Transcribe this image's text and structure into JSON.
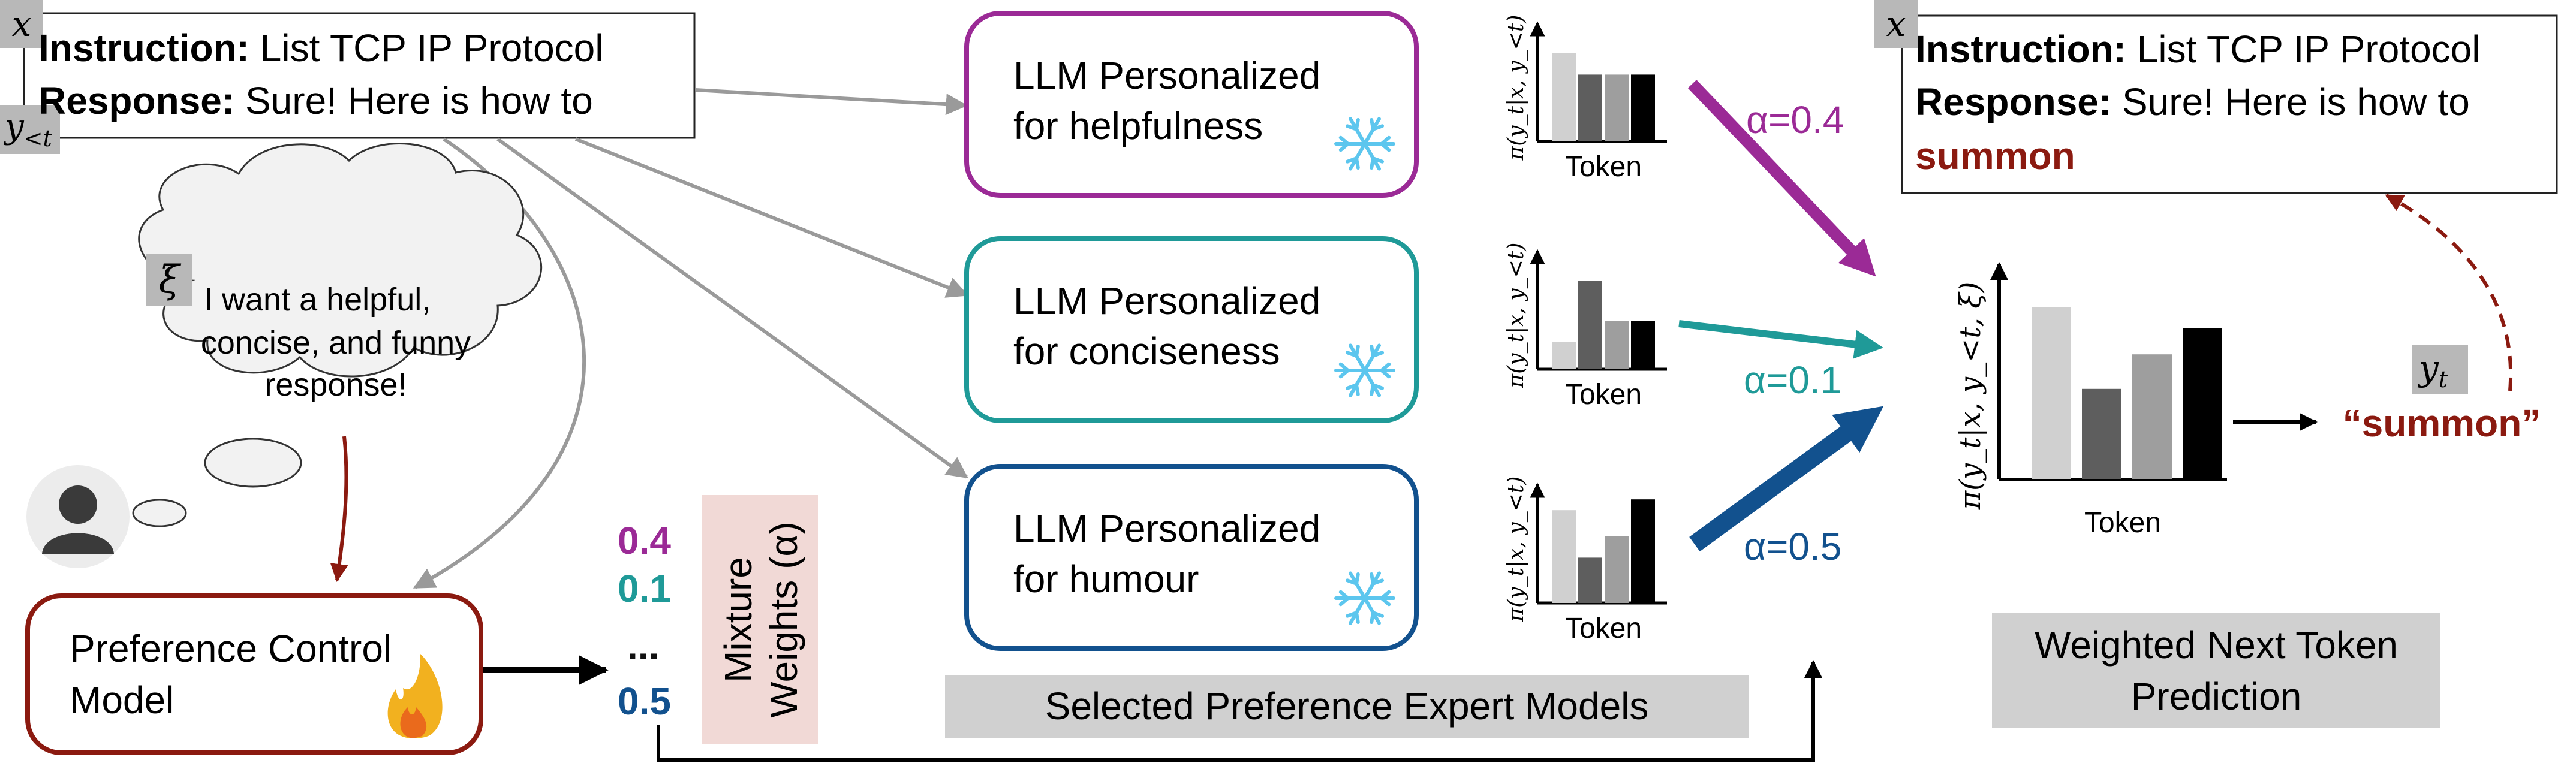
{
  "input_box": {
    "x_tag": "x",
    "y_tag": "y",
    "y_tag_sub": "<t",
    "instruction_label": "Instruction:",
    "instruction_text": "List TCP IP Protocol",
    "response_label": "Response:",
    "response_text": "Sure! Here is how to"
  },
  "thought": {
    "xi_tag": "ξ",
    "lines": [
      "I want a helpful,",
      "concise, and funny",
      "response!"
    ]
  },
  "control_model": {
    "lines": [
      "Preference Control",
      "Model"
    ],
    "fire_icon": "fire-icon"
  },
  "mixture": {
    "values": [
      "0.4",
      "0.1",
      "...",
      "0.5"
    ],
    "colors": [
      "#9b2a96",
      "#1f9a98",
      "#111111",
      "#12518e"
    ],
    "label_lines": [
      "Mixture",
      "Weights (α)"
    ]
  },
  "experts": [
    {
      "line1": "LLM Personalized",
      "line2": "for helpfulness",
      "color": "#9b2a96",
      "alpha": "α=0.4",
      "icon": "snowflake-icon"
    },
    {
      "line1": "LLM Personalized",
      "line2": "for conciseness",
      "color": "#1f9a98",
      "alpha": "α=0.1",
      "icon": "snowflake-icon"
    },
    {
      "line1": "LLM Personalized",
      "line2": "for humour",
      "color": "#12518e",
      "alpha": "α=0.5",
      "icon": "snowflake-icon"
    }
  ],
  "experts_caption": "Selected Preference Expert Models",
  "small_charts": {
    "ylabel": "π(y_t|x, y_<t)",
    "xlabel": "Token",
    "bar_colors": [
      "#d0d0d0",
      "#5e5e5e",
      "#9e9e9e",
      "#000000"
    ],
    "series": [
      [
        0.82,
        0.62,
        0.62,
        0.62
      ],
      [
        0.25,
        0.82,
        0.45,
        0.45
      ],
      [
        0.86,
        0.42,
        0.62,
        0.96
      ]
    ]
  },
  "output_box": {
    "x_tag": "x",
    "instruction_label": "Instruction:",
    "instruction_text": "List TCP IP Protocol",
    "response_label": "Response:",
    "response_text": "Sure! Here is how to",
    "generated_word": "summon"
  },
  "chart_data": {
    "type": "bar",
    "title": "",
    "xlabel": "Token",
    "ylabel": "π(y_t|x, y_<t, ξ)",
    "values": [
      0.8,
      0.42,
      0.58,
      0.7
    ],
    "bar_colors": [
      "#d0d0d0",
      "#5e5e5e",
      "#9e9e9e",
      "#000000"
    ],
    "output_tag": "y_t",
    "output_word": "“summon”"
  },
  "weighted_caption": {
    "lines": [
      "Weighted Next Token",
      "Prediction"
    ]
  },
  "colors": {
    "purple": "#9b2a96",
    "teal": "#1f9a98",
    "blue": "#12518e",
    "dark_red": "#8b1a10",
    "gray_arrow": "#9a9a9a",
    "tag_gray": "#b8b8b8",
    "caption_gray": "#d0d0d0",
    "pink": "#f1d9d6"
  }
}
